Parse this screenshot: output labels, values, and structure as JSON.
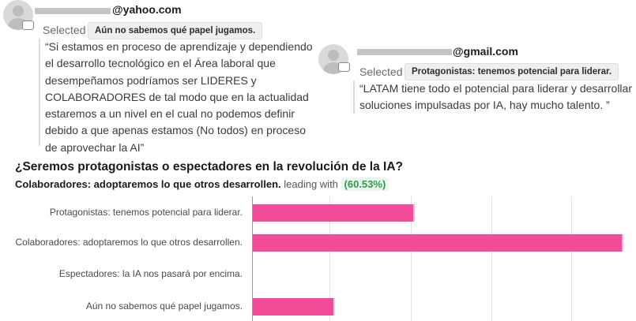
{
  "comments": [
    {
      "email": "@yahoo.com",
      "selected_label": "Selected",
      "selected_option": "Aún no sabemos qué papel jugamos.",
      "text": "“Si estamos en proceso de aprendizaje y dependiendo\nel desarrollo tecnológico en el Área laboral que\ndesempeñamos podríamos ser LIDERES y\nCOLABORADORES de tal modo que en la actualidad\nestaremos a un nivel en el cual no podemos definir\ndebido a que apenas estamos (No todos) en proceso\nde aprovechar la AI”",
      "icons": {
        "avatar": "user-avatar",
        "badge": "comment-bubble-icon"
      }
    },
    {
      "email": "@gmail.com",
      "selected_label": "Selected",
      "selected_option": "Protagonistas: tenemos potencial para liderar.",
      "text": "“LATAM tiene todo el potencial para liderar y desarrollar\nsoluciones impulsadas por IA, hay mucho talento. ”",
      "icons": {
        "avatar": "user-avatar",
        "badge": "comment-bubble-icon"
      }
    }
  ],
  "poll": {
    "question": "¿Seremos protagonistas o espectadores en la revolución de la IA?",
    "leader_option": "Colaboradores: adoptaremos lo que otros desarrollen.",
    "leading_text": "leading with",
    "leader_percent": "(60.53%)"
  },
  "chart_data": {
    "type": "bar",
    "orientation": "horizontal",
    "categories": [
      "Protagonistas: tenemos potencial para liderar.",
      "Colaboradores: adoptaremos lo que otros desarrollen.",
      "Espectadores: la IA nos pasará por encima.",
      "Aún no sabemos qué papel jugamos."
    ],
    "values": [
      26.3,
      60.53,
      0,
      13.2
    ],
    "xlim": [
      0,
      62.5
    ],
    "grid": true,
    "bar_color": "#f24c98"
  },
  "colors": {
    "accent_green": "#2e9b4b",
    "bar_pink": "#f24c98"
  }
}
